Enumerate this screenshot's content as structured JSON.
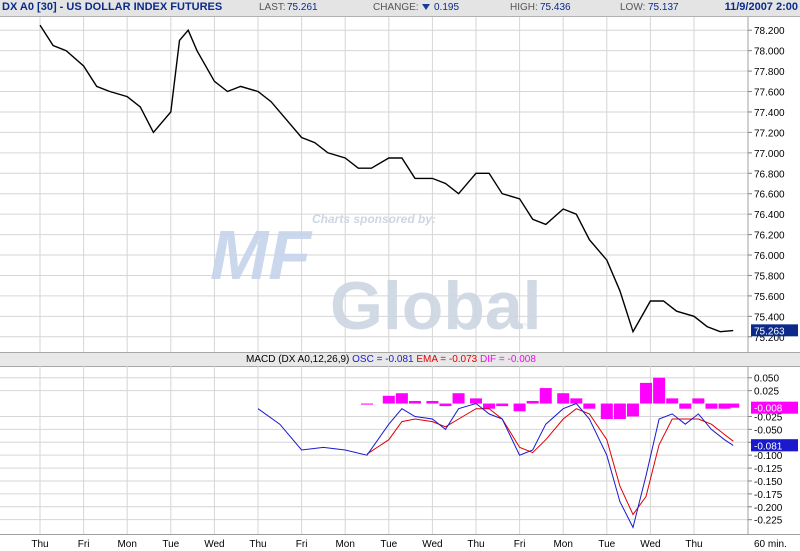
{
  "header": {
    "title": "DX A0 [30] - US DOLLAR INDEX FUTURES",
    "last_label": "LAST:",
    "last_value": "75.261",
    "change_label": "CHANGE:",
    "change_value": "0.195",
    "high_label": "HIGH:",
    "high_value": "75.436",
    "low_label": "LOW:",
    "low_value": "75.137",
    "datetime": "11/9/2007 2:00"
  },
  "watermark": {
    "sponsor": "Charts sponsored by:",
    "logo_top": "MF",
    "logo_bottom": "Global",
    "tm": "™"
  },
  "macd_label": {
    "prefix": "MACD (DX A0,12,26,9)",
    "osc": "OSC = -0.081",
    "ema": "EMA = -0.073",
    "dif": "DIF = -0.008"
  },
  "x_axis": {
    "labels": [
      "Thu",
      "Fri",
      "Mon",
      "Tue",
      "Wed",
      "Thu",
      "Fri",
      "Mon",
      "Tue",
      "Wed",
      "Thu",
      "Fri",
      "Mon",
      "Tue",
      "Wed",
      "Thu"
    ],
    "unit_label": "60 min."
  },
  "colors": {
    "price": "#000000",
    "osc": "#1a1acc",
    "ema": "#e00000",
    "dif": "#ff00ff",
    "grid": "#d6d6d6",
    "current_price_tag": "#0b2a8a",
    "osc_tag": "#1a1acc",
    "dif_tag": "#ff00ff"
  },
  "chart_data": [
    {
      "type": "line",
      "title": "DX A0 [30] - US DOLLAR INDEX FUTURES",
      "interval": "60 min.",
      "x_day_labels": [
        "Thu",
        "Fri",
        "Mon",
        "Tue",
        "Wed",
        "Thu",
        "Fri",
        "Mon",
        "Tue",
        "Wed",
        "Thu",
        "Fri",
        "Mon",
        "Tue",
        "Wed",
        "Thu"
      ],
      "ylim": [
        75.1,
        78.3
      ],
      "y_ticks": [
        "78.200",
        "78.000",
        "77.800",
        "77.600",
        "77.400",
        "77.200",
        "77.000",
        "76.800",
        "76.600",
        "76.400",
        "76.200",
        "76.000",
        "75.800",
        "75.600",
        "75.400",
        "75.200"
      ],
      "y_tick_values": [
        78.2,
        78.0,
        77.8,
        77.6,
        77.4,
        77.2,
        77.0,
        76.8,
        76.6,
        76.4,
        76.2,
        76.0,
        75.8,
        75.6,
        75.4,
        75.2
      ],
      "current_value_label": "75.263",
      "current_value": 75.263,
      "grid": true,
      "series": [
        {
          "x": [
            0,
            0.3,
            0.6,
            1.0,
            1.3,
            1.6,
            2.0,
            2.3,
            2.6,
            3.0,
            3.2,
            3.4,
            3.6,
            4.0,
            4.3,
            4.6,
            5.0,
            5.3,
            5.6,
            6.0,
            6.3,
            6.6,
            7.0,
            7.3,
            7.6,
            8.0,
            8.3,
            8.6,
            9.0,
            9.3,
            9.6,
            10.0,
            10.3,
            10.6,
            11.0,
            11.3,
            11.6,
            12.0,
            12.3,
            12.6,
            13.0,
            13.3,
            13.6,
            14.0,
            14.3,
            14.6,
            15.0,
            15.3,
            15.6,
            15.9
          ],
          "values": [
            78.25,
            78.05,
            78.0,
            77.85,
            77.65,
            77.6,
            77.55,
            77.45,
            77.2,
            77.4,
            78.1,
            78.2,
            78.0,
            77.7,
            77.6,
            77.65,
            77.6,
            77.5,
            77.35,
            77.15,
            77.1,
            77.0,
            76.95,
            76.85,
            76.85,
            76.95,
            76.95,
            76.75,
            76.75,
            76.7,
            76.6,
            76.8,
            76.8,
            76.6,
            76.55,
            76.35,
            76.3,
            76.45,
            76.4,
            76.15,
            75.95,
            75.65,
            75.25,
            75.55,
            75.55,
            75.45,
            75.4,
            75.3,
            75.25,
            75.26
          ]
        }
      ]
    },
    {
      "type": "line",
      "title": "MACD (DX A0,12,26,9)",
      "ylim": [
        -0.245,
        0.065
      ],
      "y_ticks": [
        "0.050",
        "0.025",
        "-0.025",
        "-0.050",
        "-0.075",
        "-0.100",
        "-0.125",
        "-0.150",
        "-0.175",
        "-0.200",
        "-0.225"
      ],
      "y_tick_values": [
        0.05,
        0.025,
        -0.025,
        -0.05,
        -0.075,
        -0.1,
        -0.125,
        -0.15,
        -0.175,
        -0.2,
        -0.225
      ],
      "tags": [
        {
          "series": "DIF",
          "label": "-0.008",
          "value": -0.008
        },
        {
          "series": "EMA",
          "label": "",
          "value": -0.073
        },
        {
          "series": "OSC",
          "label": "-0.081",
          "value": -0.081
        }
      ],
      "x": [
        5.0,
        5.5,
        6.0,
        6.5,
        7.0,
        7.5,
        8.0,
        8.3,
        8.6,
        9.0,
        9.3,
        9.6,
        10.0,
        10.3,
        10.6,
        11.0,
        11.3,
        11.6,
        12.0,
        12.3,
        12.6,
        13.0,
        13.3,
        13.6,
        13.9,
        14.2,
        14.5,
        14.8,
        15.1,
        15.4,
        15.7,
        15.9
      ],
      "series": [
        {
          "name": "OSC",
          "values": [
            -0.01,
            -0.04,
            -0.09,
            -0.085,
            -0.09,
            -0.1,
            -0.04,
            -0.01,
            -0.025,
            -0.03,
            -0.05,
            -0.01,
            0.0,
            -0.02,
            -0.03,
            -0.1,
            -0.09,
            -0.04,
            -0.01,
            0.0,
            -0.03,
            -0.1,
            -0.19,
            -0.24,
            -0.14,
            -0.03,
            -0.02,
            -0.04,
            -0.02,
            -0.05,
            -0.07,
            -0.081
          ]
        },
        {
          "name": "EMA",
          "values": [
            null,
            null,
            null,
            null,
            null,
            -0.098,
            -0.07,
            -0.035,
            -0.03,
            -0.035,
            -0.045,
            -0.03,
            -0.01,
            -0.01,
            -0.03,
            -0.085,
            -0.095,
            -0.07,
            -0.03,
            -0.01,
            -0.02,
            -0.07,
            -0.16,
            -0.215,
            -0.18,
            -0.08,
            -0.03,
            -0.03,
            -0.03,
            -0.04,
            -0.06,
            -0.073
          ]
        },
        {
          "name": "DIF",
          "values": [
            null,
            null,
            null,
            null,
            null,
            -0.002,
            0.015,
            0.02,
            0.005,
            0.005,
            -0.005,
            0.02,
            0.01,
            -0.01,
            -0.005,
            -0.015,
            0.005,
            0.03,
            0.02,
            0.01,
            -0.01,
            -0.03,
            -0.03,
            -0.025,
            0.04,
            0.05,
            0.01,
            -0.01,
            0.01,
            -0.01,
            -0.01,
            -0.008
          ]
        }
      ]
    }
  ]
}
